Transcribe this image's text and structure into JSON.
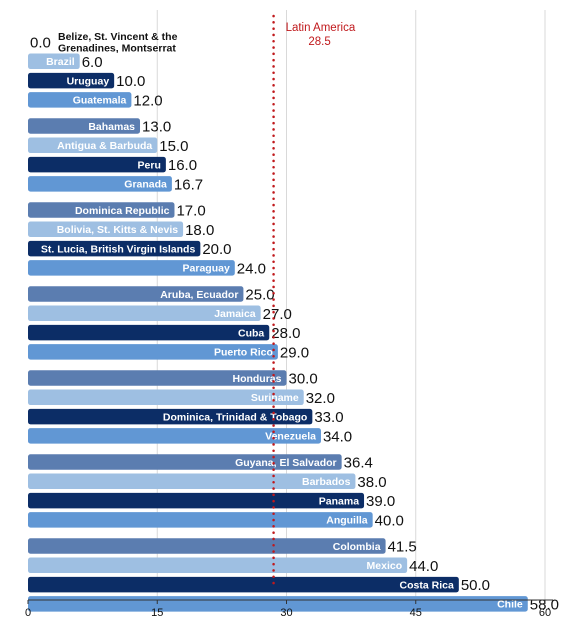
{
  "chart_data": {
    "type": "bar",
    "orientation": "horizontal",
    "xlim": [
      0,
      60
    ],
    "x_ticks": [
      "0",
      "15",
      "30",
      "45",
      "60"
    ],
    "grid": "vertical",
    "reference_line": {
      "label": "Latin America",
      "value_label": "28.5",
      "value": 28.5,
      "color": "#c0191c",
      "style": "dotted"
    },
    "colors": [
      "#5b7db0",
      "#9ebfe2",
      "#0c2d66",
      "#6197d4"
    ],
    "categories": [
      "Belize, St. Vincent & the Grenadines, Montserrat",
      "Brazil",
      "Uruguay",
      "Guatemala",
      "Bahamas",
      "Antigua & Barbuda",
      "Peru",
      "Granada",
      "Dominica Republic",
      "Bolivia, St. Kitts & Nevis",
      "St. Lucia, British Virgin Islands",
      "Paraguay",
      "Aruba, Ecuador",
      "Jamaica",
      "Cuba",
      "Puerto Rico",
      "Honduras",
      "Suriname",
      "Dominica, Trinidad & Tobago",
      "Venezuela",
      "Guyana, El Salvador",
      "Barbados",
      "Panama",
      "Anguilla",
      "Colombia",
      "Mexico",
      "Costa Rica",
      "Chile"
    ],
    "values": [
      0.0,
      6.0,
      10.0,
      12.0,
      13.0,
      15.0,
      16.0,
      16.7,
      17.0,
      18.0,
      20.0,
      24.0,
      25.0,
      27.0,
      28.0,
      29.0,
      30.0,
      32.0,
      33.0,
      34.0,
      36.4,
      38.0,
      39.0,
      40.0,
      41.5,
      44.0,
      50.0,
      58.0
    ],
    "value_labels": [
      "0.0",
      "6.0",
      "10.0",
      "12.0",
      "13.0",
      "15.0",
      "16.0",
      "16.7",
      "17.0",
      "18.0",
      "20.0",
      "24.0",
      "25.0",
      "27.0",
      "28.0",
      "29.0",
      "30.0",
      "32.0",
      "33.0",
      "34.0",
      "36.4",
      "38.0",
      "39.0",
      "40.0",
      "41.5",
      "44.0",
      "50.0",
      "58.0"
    ],
    "category_label_lines": {
      "0": [
        "Belize, St. Vincent & the",
        "Grenadines, Montserrat"
      ]
    }
  }
}
